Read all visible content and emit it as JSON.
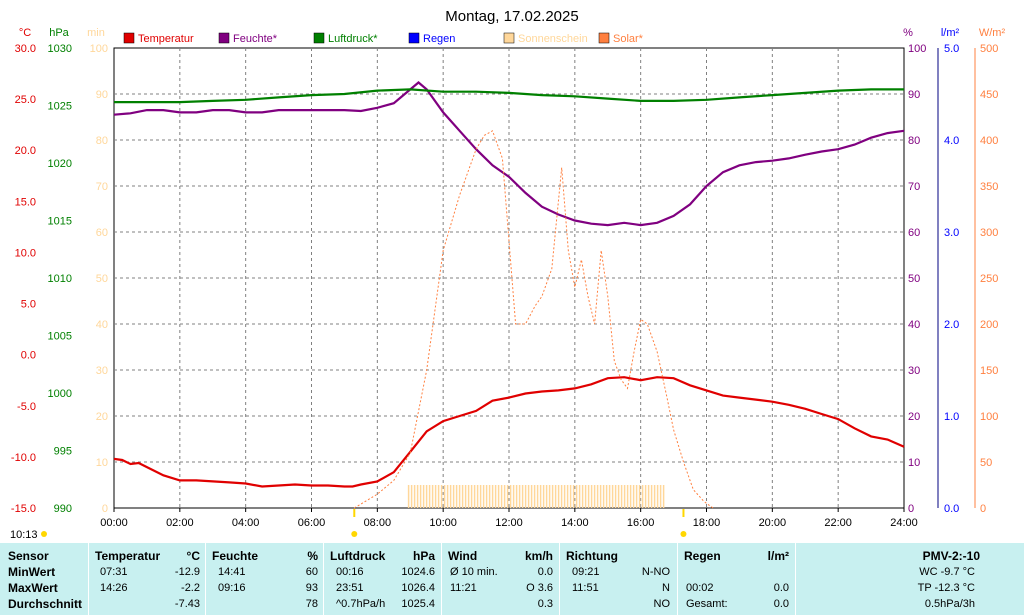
{
  "chart_data": {
    "type": "line",
    "title": "Montag, 17.02.2025",
    "legend": [
      {
        "name": "Temperatur",
        "color": "#e00000"
      },
      {
        "name": "Feuchte*",
        "color": "#800080"
      },
      {
        "name": "Luftdruck*",
        "color": "#008000"
      },
      {
        "name": "Regen",
        "color": "#0000ff"
      },
      {
        "name": "Sonnenschein",
        "color": "#ffd79a"
      },
      {
        "name": "Solar*",
        "color": "#ff8040"
      }
    ],
    "legend_position": "top",
    "grid": true,
    "x_ticks": [
      "00:00",
      "02:00",
      "04:00",
      "06:00",
      "08:00",
      "10:00",
      "12:00",
      "14:00",
      "16:00",
      "18:00",
      "20:00",
      "22:00",
      "24:00"
    ],
    "x_range_hours": [
      0,
      24
    ],
    "axes": {
      "temp": {
        "unit": "°C",
        "color": "#e00000",
        "range": [
          -15,
          30
        ],
        "ticks": [
          "30.0",
          "25.0",
          "20.0",
          "15.0",
          "10.0",
          "5.0",
          "0.0",
          "-5.0",
          "-10.0",
          "-15.0"
        ]
      },
      "press": {
        "unit": "hPa",
        "color": "#008000",
        "range": [
          990,
          1030
        ],
        "ticks": [
          "1030",
          "1025",
          "1020",
          "1015",
          "1010",
          "1005",
          "1000",
          "995",
          "990"
        ]
      },
      "minutes": {
        "unit": "min",
        "color": "#ffd79a",
        "range": [
          0,
          100
        ],
        "ticks": [
          "100",
          "90",
          "80",
          "70",
          "60",
          "50",
          "40",
          "30",
          "20",
          "10",
          "0"
        ]
      },
      "hum": {
        "unit": "%",
        "color": "#800080",
        "range": [
          0,
          100
        ],
        "ticks": [
          "100",
          "90",
          "80",
          "70",
          "60",
          "50",
          "40",
          "30",
          "20",
          "10",
          "0"
        ]
      },
      "rain": {
        "unit": "l/m²",
        "color": "#0000ff",
        "range": [
          0,
          5
        ],
        "ticks": [
          "5.0",
          "4.0",
          "3.0",
          "2.0",
          "1.0",
          "0.0"
        ]
      },
      "solar": {
        "unit": "W/m²",
        "color": "#ff8040",
        "range": [
          0,
          500
        ],
        "ticks": [
          "500",
          "450",
          "400",
          "350",
          "300",
          "250",
          "200",
          "150",
          "100",
          "50",
          "0"
        ]
      }
    },
    "series": [
      {
        "name": "Temperatur",
        "axis": "temp",
        "color": "#e00000",
        "x": [
          0,
          0.25,
          0.5,
          0.75,
          1,
          1.5,
          2,
          2.5,
          3,
          3.5,
          4,
          4.5,
          5,
          5.5,
          6,
          6.5,
          7,
          7.25,
          7.5,
          8,
          8.5,
          9,
          9.5,
          10,
          10.5,
          11,
          11.5,
          12,
          12.5,
          13,
          13.5,
          14,
          14.5,
          15,
          15.5,
          16,
          16.5,
          17,
          17.5,
          18,
          18.5,
          19,
          19.5,
          20,
          20.5,
          21,
          21.5,
          22,
          22.5,
          23,
          23.5,
          24
        ],
        "y": [
          -10.2,
          -10.3,
          -10.7,
          -10.6,
          -11,
          -11.8,
          -12.3,
          -12.3,
          -12.4,
          -12.5,
          -12.6,
          -12.9,
          -12.8,
          -12.7,
          -12.8,
          -12.8,
          -12.9,
          -12.9,
          -12.7,
          -12.4,
          -11.5,
          -9.5,
          -7.5,
          -6.5,
          -6,
          -5.5,
          -4.5,
          -4.2,
          -3.8,
          -3.6,
          -3.5,
          -3.3,
          -2.9,
          -2.3,
          -2.2,
          -2.5,
          -2.2,
          -2.3,
          -3,
          -3.5,
          -4,
          -4.2,
          -4.4,
          -4.6,
          -4.9,
          -5.3,
          -5.8,
          -6.3,
          -7.2,
          -8,
          -8.3,
          -9
        ]
      },
      {
        "name": "Feuchte*",
        "axis": "hum",
        "color": "#800080",
        "x": [
          0,
          0.5,
          1,
          1.5,
          2,
          2.5,
          3,
          3.5,
          4,
          4.5,
          5,
          5.5,
          6,
          6.5,
          7,
          7.5,
          8,
          8.5,
          9,
          9.25,
          9.5,
          10,
          10.5,
          11,
          11.5,
          12,
          12.5,
          13,
          13.5,
          14,
          14.5,
          15,
          15.5,
          16,
          16.5,
          17,
          17.5,
          18,
          18.5,
          19,
          19.5,
          20,
          20.5,
          21,
          21.5,
          22,
          22.5,
          23,
          23.5,
          24
        ],
        "y": [
          85.5,
          85.8,
          86.5,
          86.5,
          86,
          86,
          86.5,
          86.5,
          86,
          86,
          86.5,
          86.5,
          86.5,
          86.5,
          86.5,
          86.3,
          87,
          88,
          91,
          92.5,
          91,
          86,
          82,
          78,
          74.5,
          72,
          68.5,
          65.5,
          63.8,
          62.5,
          61.8,
          61.5,
          62,
          61.5,
          62,
          63.5,
          66,
          70,
          73,
          74.5,
          75.2,
          75.5,
          76,
          76.8,
          77.5,
          78,
          79,
          80.5,
          81.5,
          82
        ]
      },
      {
        "name": "Luftdruck*",
        "axis": "press",
        "color": "#008000",
        "x": [
          0,
          1,
          2,
          3,
          4,
          5,
          6,
          7,
          8,
          9,
          10,
          11,
          12,
          13,
          14,
          15,
          16,
          17,
          18,
          19,
          20,
          21,
          22,
          23,
          24
        ],
        "y": [
          1025.3,
          1025.3,
          1025.3,
          1025.4,
          1025.5,
          1025.7,
          1025.9,
          1026.0,
          1026.3,
          1026.4,
          1026.2,
          1026.2,
          1026.1,
          1025.9,
          1025.8,
          1025.6,
          1025.4,
          1025.4,
          1025.5,
          1025.7,
          1025.9,
          1026.1,
          1026.3,
          1026.4,
          1026.4
        ]
      },
      {
        "name": "Solar*",
        "axis": "solar",
        "color": "#ff8040",
        "dashed": true,
        "x": [
          7.3,
          8,
          8.5,
          9,
          9.5,
          10,
          10.5,
          11,
          11.25,
          11.5,
          11.8,
          12,
          12.2,
          12.5,
          12.8,
          13,
          13.3,
          13.6,
          13.8,
          14,
          14.2,
          14.4,
          14.6,
          14.8,
          15,
          15.2,
          15.4,
          15.6,
          15.8,
          16,
          16.2,
          16.5,
          16.8,
          17,
          17.3,
          17.6,
          17.9,
          18,
          18.2
        ],
        "y": [
          0,
          15,
          30,
          60,
          150,
          280,
          340,
          390,
          405,
          410,
          380,
          290,
          200,
          200,
          220,
          230,
          260,
          370,
          280,
          240,
          270,
          230,
          200,
          280,
          230,
          160,
          140,
          130,
          170,
          205,
          200,
          170,
          120,
          85,
          50,
          20,
          8,
          5,
          0
        ]
      },
      {
        "name": "Sonnenschein",
        "axis": "minutes",
        "color": "#ffd79a",
        "x_range": [
          8.95,
          16.75
        ],
        "value": 5
      }
    ]
  },
  "markers": {
    "sunrise_label": "10:13"
  },
  "stats": {
    "headers": [
      "Sensor",
      "Temperatur",
      "°C",
      "Feuchte",
      "%",
      "Luftdruck",
      "hPa",
      "Wind",
      "km/h",
      "Richtung",
      "Regen",
      "l/m²",
      "PMV-2:-10"
    ],
    "rows": [
      {
        "label": "MinWert",
        "temp_time": "07:31",
        "temp_val": "-12.9",
        "hum_time": "14:41",
        "hum_val": "60",
        "press_time": "00:16",
        "press_val": "1024.6",
        "wind_label": "Ø 10 min.",
        "wind_val": "0.0",
        "dir_time": "09:21",
        "dir_val": "N-NO",
        "rain_time": "",
        "rain_val": "",
        "extra": "WC -9.7 °C"
      },
      {
        "label": "MaxWert",
        "temp_time": "14:26",
        "temp_val": "-2.2",
        "hum_time": "09:16",
        "hum_val": "93",
        "press_time": "23:51",
        "press_val": "1026.4",
        "wind_label": "11:21",
        "wind_val": "O 3.6",
        "dir_time": "11:51",
        "dir_val": "N",
        "rain_time": "00:02",
        "rain_val": "0.0",
        "extra": "TP -12.3 °C"
      },
      {
        "label": "Durchschnitt",
        "temp_time": "",
        "temp_val": "-7.43",
        "hum_time": "",
        "hum_val": "78",
        "press_time": "^0.7hPa/h",
        "press_val": "1025.4",
        "wind_label": "",
        "wind_val": "0.3",
        "dir_time": "",
        "dir_val": "NO",
        "rain_time": "Gesamt:",
        "rain_val": "0.0",
        "extra": "0.5hPa/3h"
      }
    ]
  }
}
